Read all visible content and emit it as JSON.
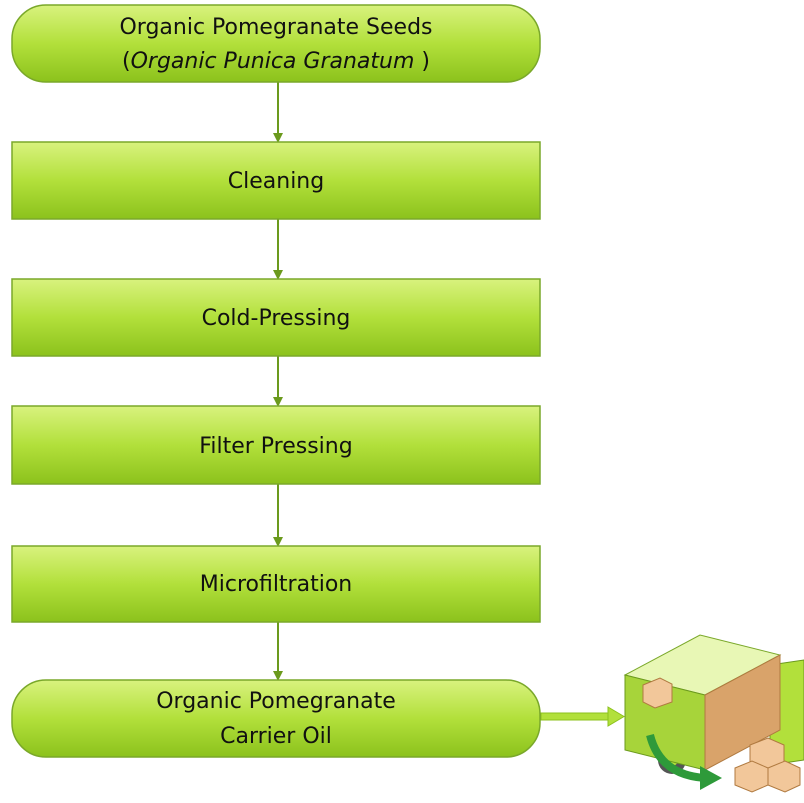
{
  "nodes": [
    {
      "line1": "Organic Pomegranate Seeds",
      "line2_prefix": "(",
      "line2_italic": "Organic Punica Granatum",
      "line2_suffix": " )"
    },
    {
      "label": "Cleaning"
    },
    {
      "label": "Cold-Pressing"
    },
    {
      "label": "Filter Pressing"
    },
    {
      "label": "Microfiltration"
    },
    {
      "line1": "Organic Pomegranate",
      "line2": "Carrier Oil"
    }
  ]
}
